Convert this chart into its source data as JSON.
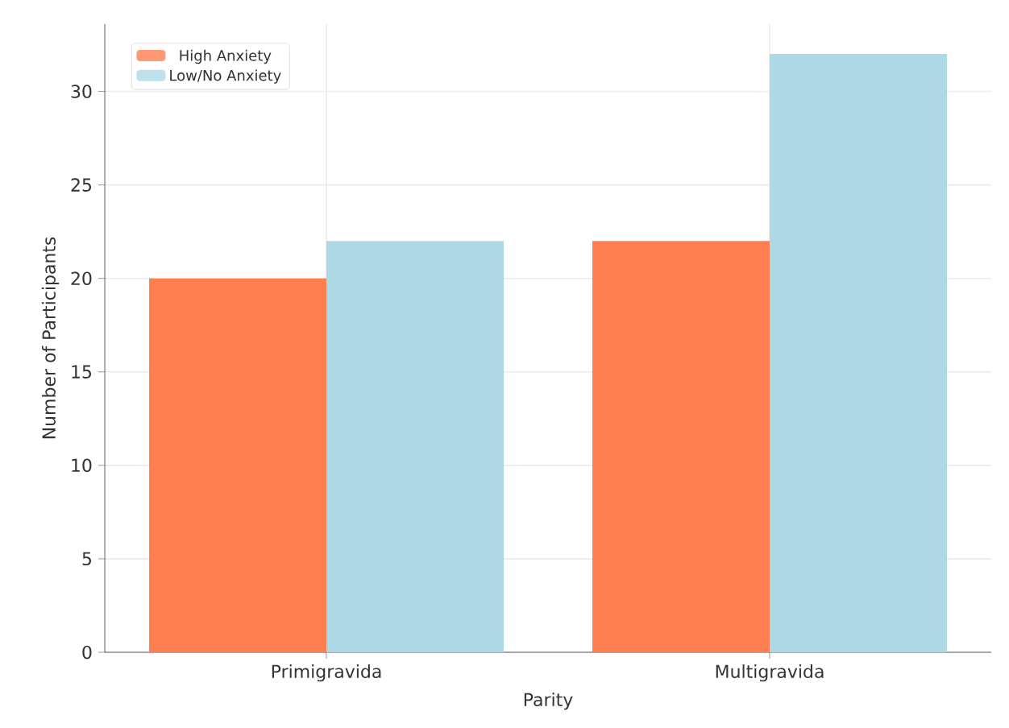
{
  "chart_data": {
    "type": "bar",
    "xlabel": "Parity",
    "ylabel": "Number of Participants",
    "categories": [
      "Primigravida",
      "Multigravida"
    ],
    "series": [
      {
        "name": "High Anxiety",
        "color": "#ff7f50",
        "values": [
          20,
          22
        ]
      },
      {
        "name": "Low/No Anxiety",
        "color": "#add8e6",
        "values": [
          22,
          32
        ]
      }
    ],
    "ylim": [
      0,
      33.6
    ],
    "yticks": [
      0,
      5,
      10,
      15,
      20,
      25,
      30
    ],
    "grid": true,
    "legend": "top left"
  }
}
